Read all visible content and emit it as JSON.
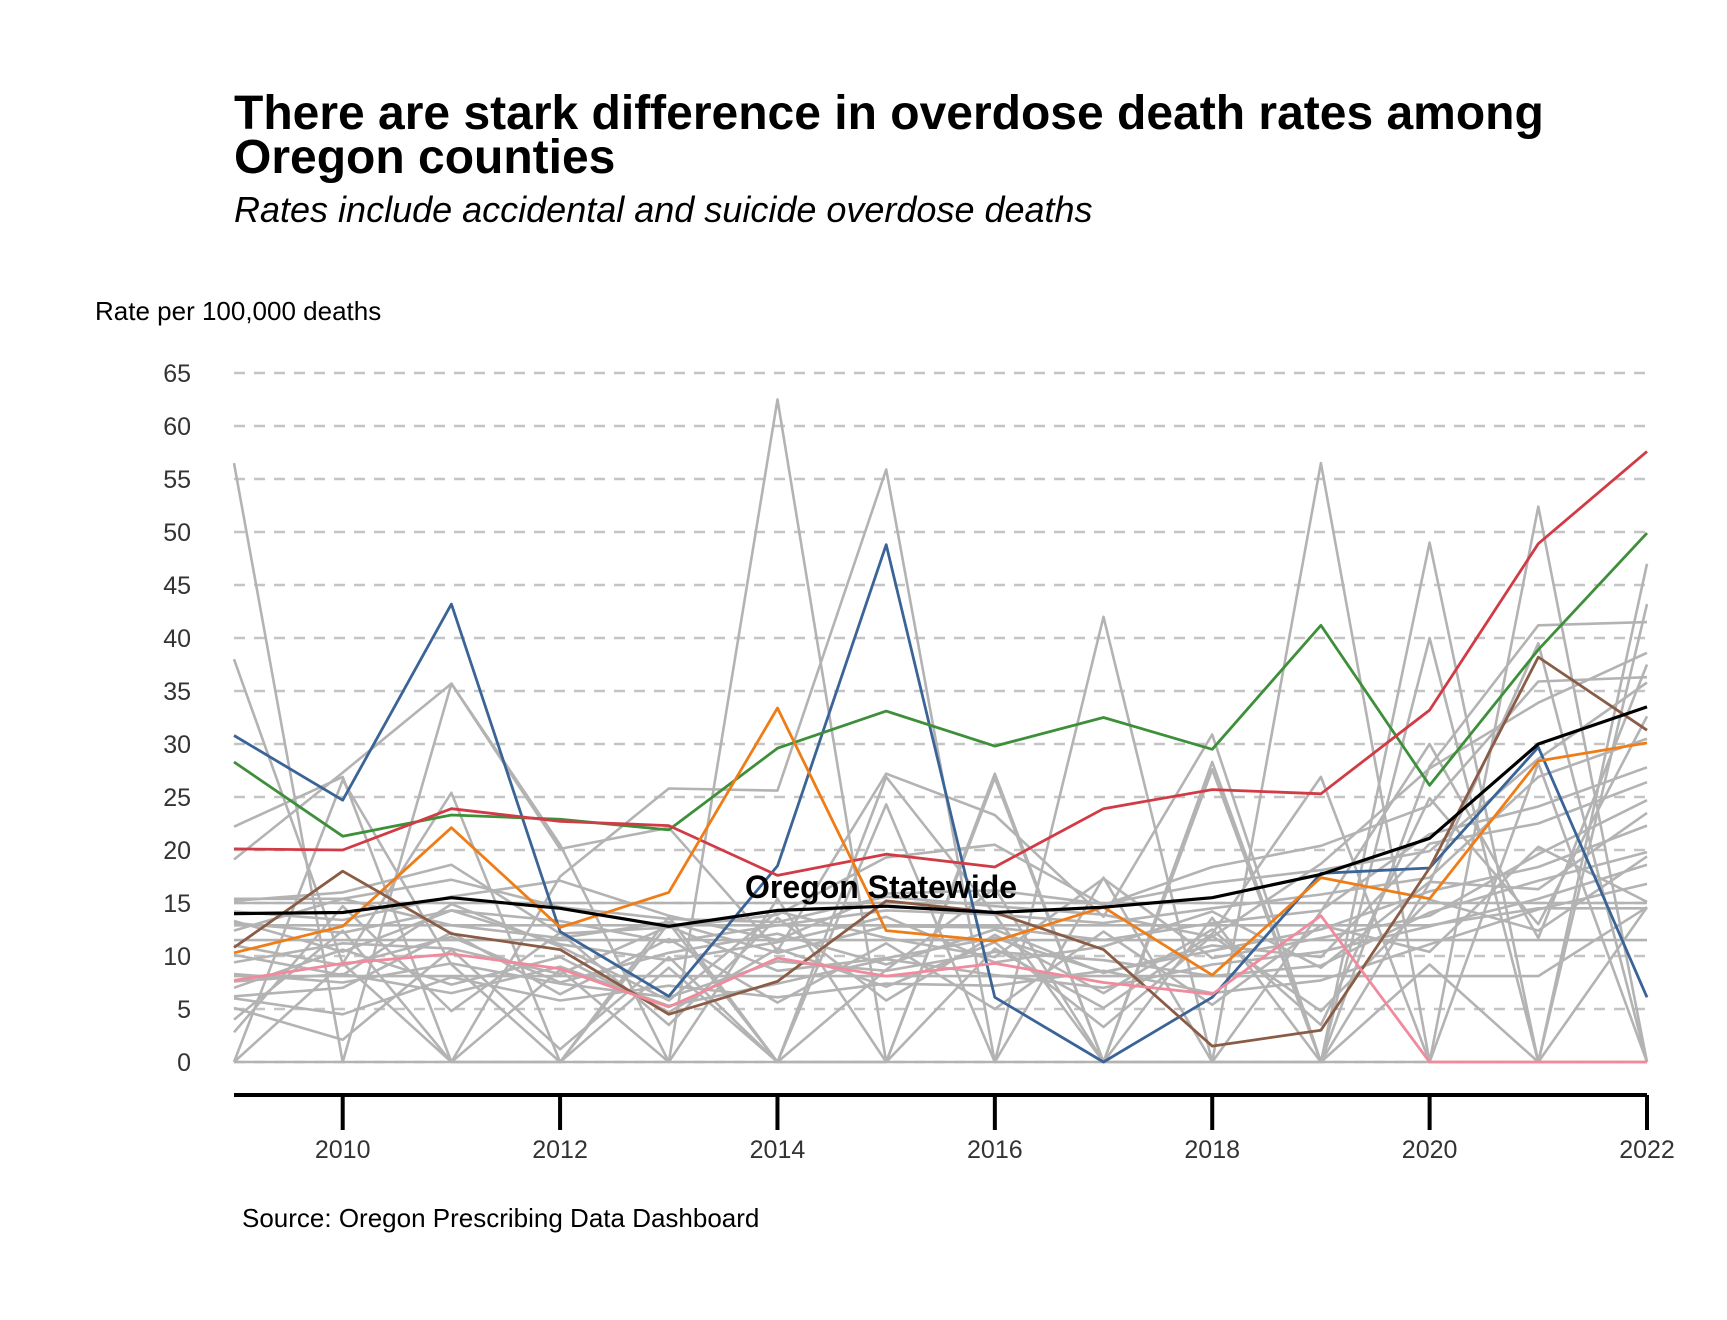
{
  "chart_data": {
    "type": "line",
    "title": "There are stark difference in overdose death rates among Oregon counties",
    "subtitle": "Rates include accidental and suicide overdose deaths",
    "ylabel": "Rate per 100,000 deaths",
    "xlabel": "",
    "source": "Source: Oregon Prescribing Data Dashboard",
    "x": [
      2009,
      2010,
      2011,
      2012,
      2013,
      2014,
      2015,
      2016,
      2017,
      2018,
      2019,
      2020,
      2021,
      2022
    ],
    "xlim": [
      2009,
      2022
    ],
    "ylim": [
      0,
      65
    ],
    "x_ticks": [
      "2010",
      "2012",
      "2014",
      "2016",
      "2018",
      "2020",
      "2022"
    ],
    "y_ticks": [
      "0",
      "5",
      "10",
      "15",
      "20",
      "25",
      "30",
      "35",
      "40",
      "45",
      "50",
      "55",
      "60",
      "65"
    ],
    "grid": "horizontal dashed",
    "annotation": "Oregon Statewide",
    "background_color": "#b3b3b3",
    "highlight_series": [
      {
        "color": "#3b6496",
        "values": [
          30.8,
          24.7,
          43.2,
          12.3,
          6.2,
          18.5,
          48.8,
          6.1,
          0,
          6.1,
          17.8,
          18.3,
          29.7,
          6.1
        ]
      },
      {
        "color": "#3e8f3a",
        "values": [
          28.3,
          21.3,
          23.3,
          22.9,
          21.9,
          29.6,
          33.1,
          29.8,
          32.5,
          29.5,
          41.2,
          26.1,
          38.9,
          49.9
        ]
      },
      {
        "color": "#d13b45",
        "values": [
          20.1,
          20.0,
          23.9,
          22.7,
          22.3,
          17.6,
          19.6,
          18.4,
          23.9,
          25.7,
          25.3,
          33.2,
          48.9,
          57.6
        ]
      },
      {
        "color": "#ef7d17",
        "values": [
          10.3,
          12.8,
          22.1,
          12.7,
          16.0,
          33.4,
          12.4,
          11.4,
          14.6,
          8.2,
          17.4,
          15.4,
          28.4,
          30.1
        ]
      },
      {
        "color": "#8a5c46",
        "values": [
          10.8,
          18.0,
          12.1,
          10.6,
          4.5,
          7.6,
          15.2,
          14.1,
          10.6,
          1.5,
          3.0,
          18.3,
          38.2,
          31.3
        ]
      },
      {
        "color": "#f08a9c",
        "values": [
          7.7,
          9.3,
          10.2,
          8.8,
          5.2,
          9.8,
          8.1,
          9.3,
          7.5,
          6.4,
          13.8,
          0,
          0,
          0
        ]
      }
    ],
    "statewide": {
      "name": "Oregon Statewide",
      "color": "#000000",
      "values": [
        14.0,
        14.1,
        15.5,
        14.5,
        12.8,
        14.3,
        14.7,
        14.1,
        14.6,
        15.5,
        17.7,
        21.1,
        30.0,
        33.5
      ]
    },
    "background_series": [
      [
        56.5,
        0,
        35.7,
        20.5,
        0,
        62.5,
        0,
        27.2,
        0,
        0,
        56.5,
        0,
        52.4,
        0
      ],
      [
        38.0,
        9.3,
        0,
        17.5,
        25.8,
        25.6,
        55.9,
        0,
        42.0,
        0,
        0,
        49.0,
        0,
        47.0
      ],
      [
        22.2,
        26.9,
        0,
        0,
        13.7,
        0,
        26.9,
        13.9,
        0,
        28.3,
        0,
        40.0,
        0,
        43.2
      ],
      [
        19.1,
        27.3,
        35.7,
        20.1,
        22.1,
        10.5,
        27.2,
        23.3,
        13.7,
        30.9,
        0,
        27.9,
        41.2,
        41.5
      ],
      [
        15.2,
        16.0,
        18.6,
        12.1,
        12.7,
        13.9,
        19.3,
        20.5,
        14.8,
        18.4,
        20.4,
        24.2,
        35.9,
        36.3
      ],
      [
        14.2,
        13.4,
        15.6,
        17.1,
        13.8,
        11.5,
        15.9,
        16.2,
        14.9,
        16.9,
        18.1,
        19.9,
        28.6,
        35.8
      ],
      [
        13.1,
        12.2,
        14.3,
        13.3,
        11.3,
        12.9,
        14.3,
        13.9,
        13.1,
        14.5,
        15.8,
        17.4,
        26.9,
        30.5
      ],
      [
        12.4,
        15.4,
        12.9,
        11.7,
        13.2,
        10.3,
        12.8,
        12.7,
        11.5,
        13.1,
        14.3,
        21.5,
        24.1,
        27.8
      ],
      [
        10.1,
        8.2,
        14.9,
        10.9,
        5.8,
        14.2,
        11.7,
        9.9,
        17.3,
        9.8,
        11.7,
        13.8,
        19.6,
        24.7
      ],
      [
        9.4,
        11.2,
        10.7,
        8.3,
        12.8,
        8.6,
        9.8,
        11.7,
        8.5,
        10.5,
        12.5,
        16.1,
        18.4,
        22.3
      ],
      [
        8.3,
        7.5,
        9.3,
        7.4,
        6.1,
        9.5,
        8.6,
        10.4,
        9.6,
        8.1,
        9.1,
        14.1,
        17.1,
        19.8
      ],
      [
        7.6,
        8.3,
        6.5,
        9.0,
        5.3,
        7.4,
        9.7,
        8.2,
        7.0,
        9.2,
        10.4,
        12.8,
        15.4,
        18.6
      ],
      [
        6.0,
        4.5,
        8.0,
        5.8,
        7.2,
        6.1,
        7.4,
        7.2,
        8.6,
        6.5,
        7.7,
        11.1,
        14.4,
        16.8
      ],
      [
        5.1,
        2.1,
        10.6,
        1.2,
        9.9,
        0,
        8.7,
        16.4,
        0,
        27.6,
        0,
        9.2,
        0,
        14.6
      ],
      [
        4.0,
        12.4,
        0,
        8.7,
        0,
        15.4,
        0,
        10.7,
        5.1,
        12.1,
        26.9,
        0,
        28.2,
        0
      ],
      [
        0,
        26.6,
        9.2,
        0,
        13.1,
        0,
        24.3,
        0,
        17.4,
        0,
        14.2,
        30.0,
        11.7,
        37.5
      ],
      [
        0,
        9.3,
        25.4,
        0,
        8.9,
        0,
        0,
        26.8,
        0,
        13.6,
        0,
        16.9,
        39.5,
        0
      ],
      [
        15.0,
        15.0,
        15.0,
        15.0,
        15.0,
        15.0,
        15.0,
        15.0,
        15.0,
        15.0,
        15.0,
        15.0,
        15.0,
        15.0
      ],
      [
        12.9,
        12.9,
        12.9,
        12.9,
        12.9,
        12.9,
        12.9,
        12.9,
        12.9,
        12.9,
        12.9,
        12.9,
        14.5,
        14.5
      ],
      [
        8.1,
        8.1,
        8.1,
        8.1,
        8.1,
        8.1,
        8.1,
        8.1,
        8.1,
        8.1,
        8.1,
        8.1,
        8.1,
        14.6
      ],
      [
        11.5,
        11.5,
        11.5,
        11.5,
        11.5,
        11.5,
        11.5,
        11.5,
        11.5,
        11.5,
        11.5,
        11.5,
        11.5,
        11.5
      ],
      [
        13.3,
        10.4,
        14.3,
        11.1,
        9.6,
        11.3,
        13.7,
        9.4,
        10.9,
        14.2,
        8.9,
        17.0,
        16.3,
        23.5
      ],
      [
        11.0,
        9.1,
        11.8,
        7.5,
        10.3,
        12.1,
        9.2,
        12.5,
        8.4,
        11.0,
        9.9,
        20.6,
        22.5,
        26.4
      ],
      [
        7.0,
        10.6,
        7.3,
        9.9,
        4.7,
        10.7,
        7.1,
        11.3,
        3.3,
        11.9,
        4.8,
        15.3,
        12.4,
        19.4
      ],
      [
        6.2,
        7.0,
        12.2,
        6.4,
        11.6,
        5.6,
        11.2,
        5.0,
        12.3,
        5.4,
        12.9,
        10.4,
        20.3,
        15.1
      ],
      [
        2.8,
        14.7,
        4.8,
        12.2,
        3.5,
        13.6,
        5.8,
        12.0,
        6.5,
        12.5,
        3.5,
        24.9,
        13.0,
        32.6
      ],
      [
        0,
        0,
        0,
        0,
        0,
        0,
        0,
        0,
        0,
        0,
        0,
        0,
        0,
        0
      ],
      [
        15.4,
        15.4,
        17.2,
        14.6,
        13.5,
        13.2,
        15.6,
        14.7,
        13.9,
        11.8,
        18.7,
        27.7,
        33.9,
        38.6
      ]
    ]
  }
}
